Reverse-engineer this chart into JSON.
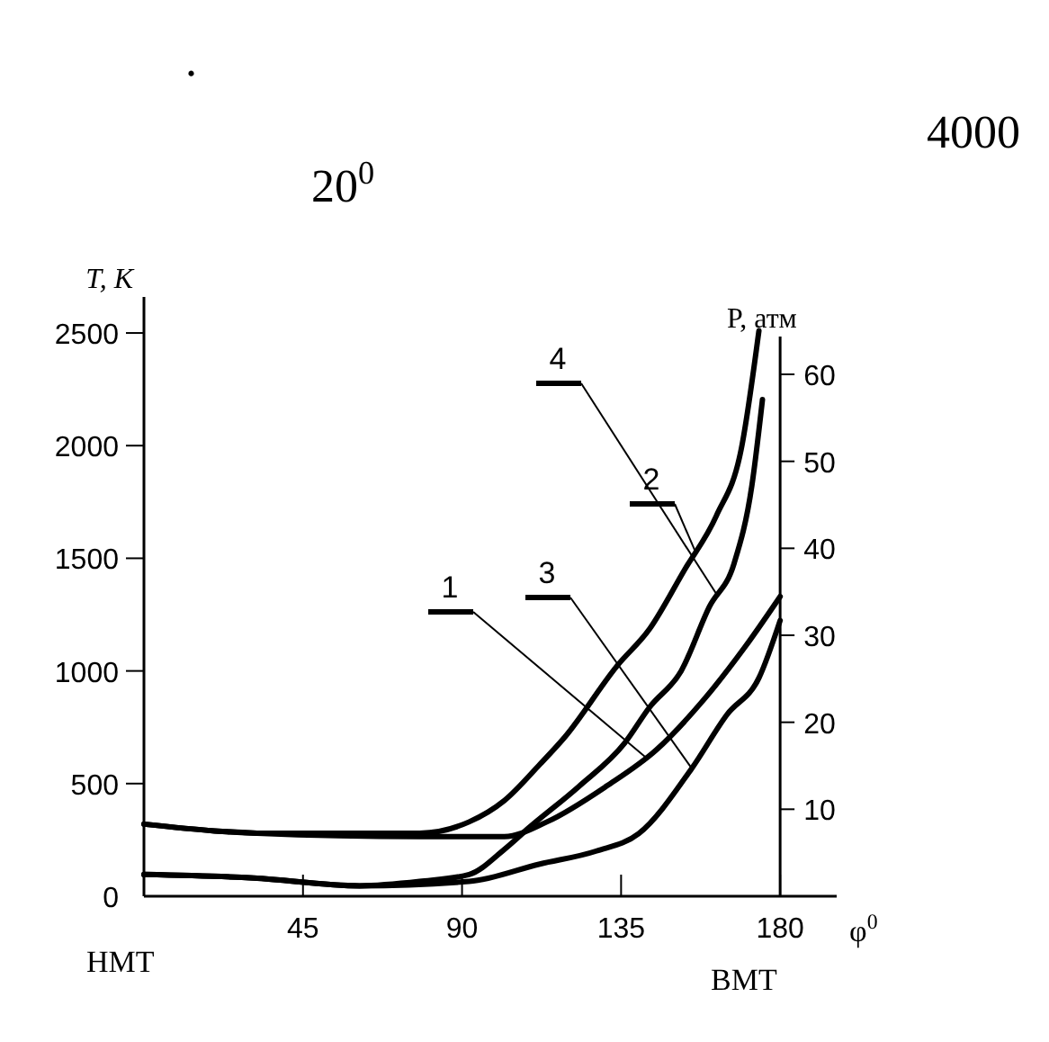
{
  "chart_data": {
    "type": "line",
    "xlabel": "φ$^{0}$",
    "ylabel": "T, K",
    "y2label": "P, атм",
    "annotations": [
      ".",
      "4000",
      "20$^{0}$",
      "НМТ",
      "ВМТ"
    ],
    "xlim": [
      0,
      196
    ],
    "xticks": [
      45,
      90,
      135,
      180
    ],
    "ylim": [
      0,
      2660
    ],
    "yticks": [
      0,
      500,
      1000,
      1500,
      2000,
      2500
    ],
    "y2lim": [
      0,
      68.9
    ],
    "y2ticks": [
      10,
      20,
      30,
      40,
      50,
      60
    ],
    "marker": "none",
    "line_style": "solid",
    "series": [
      {
        "name": "1",
        "color": "#000000",
        "x": [
          0,
          20,
          32,
          78,
          102,
          114,
          131,
          145,
          158,
          170,
          180
        ],
        "values": [
          320,
          290,
          280,
          265,
          265,
          330,
          490,
          650,
          865,
          1105,
          1330
        ]
      },
      {
        "name": "2",
        "color": "#000000",
        "x": [
          0,
          20,
          32,
          78,
          92,
          102,
          112,
          119,
          134,
          143,
          153,
          162,
          169,
          174
        ],
        "values": [
          320,
          290,
          280,
          280,
          330,
          425,
          585,
          705,
          1025,
          1185,
          1450,
          1690,
          1985,
          2510
        ]
      },
      {
        "name": "3",
        "color": "#000000",
        "axis": "y2",
        "x": [
          0,
          31,
          61,
          92,
          112,
          128,
          140,
          155,
          165,
          174,
          180
        ],
        "values": [
          2.5,
          2.1,
          1.2,
          1.7,
          3.7,
          5.2,
          7.2,
          14.7,
          20.9,
          25.1,
          31.7
        ]
      },
      {
        "name": "4",
        "color": "#000000",
        "axis": "y2",
        "x": [
          0,
          31,
          61,
          78,
          92,
          102,
          109,
          123,
          136,
          143,
          152,
          160,
          167,
          172,
          175
        ],
        "values": [
          2.5,
          2.1,
          1.2,
          1.7,
          2.5,
          5.4,
          7.9,
          12.6,
          17.6,
          21.7,
          25.9,
          33.3,
          38.3,
          47.2,
          57.1
        ]
      }
    ]
  }
}
